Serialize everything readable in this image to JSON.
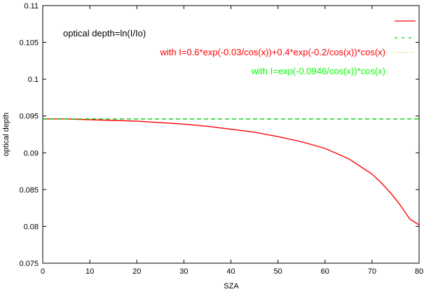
{
  "chart_data": {
    "type": "line",
    "xlabel": "SZA",
    "ylabel": "optical depth",
    "xlim": [
      0,
      80
    ],
    "ylim": [
      0.075,
      0.11
    ],
    "x_ticks": [
      "0",
      "10",
      "20",
      "30",
      "40",
      "50",
      "60",
      "70",
      "80"
    ],
    "y_ticks": [
      "0.075",
      "0.08",
      "0.085",
      "0.09",
      "0.095",
      "0.1",
      "0.105",
      "0.11"
    ],
    "grid": false,
    "annotations": [
      {
        "text": "optical depth=ln(I/Io)",
        "color": "#000000"
      },
      {
        "text": "with I=0.6*exp(-0.03/cos(x))+0.4*exp(-0.2/cos(x))*cos(x)",
        "color": "#ff0000"
      },
      {
        "text": "with I=exp(-0.0946/cos(x))*cos(x)",
        "color": "#00ff00"
      }
    ],
    "series": [
      {
        "color": "#ff0000",
        "style": "solid",
        "x": [
          0,
          5,
          10,
          15,
          20,
          25,
          30,
          35,
          40,
          45,
          50,
          55,
          60,
          65,
          70,
          72,
          74,
          76,
          78,
          80
        ],
        "y": [
          0.0946,
          0.0946,
          0.0945,
          0.0944,
          0.0943,
          0.0941,
          0.0939,
          0.0936,
          0.0932,
          0.0928,
          0.0922,
          0.0915,
          0.0906,
          0.0892,
          0.0871,
          0.0859,
          0.0845,
          0.0829,
          0.081,
          0.0802
        ]
      },
      {
        "color": "#00cc00",
        "style": "dashed",
        "x": [
          0,
          80
        ],
        "y": [
          0.0946,
          0.0946
        ]
      }
    ]
  }
}
